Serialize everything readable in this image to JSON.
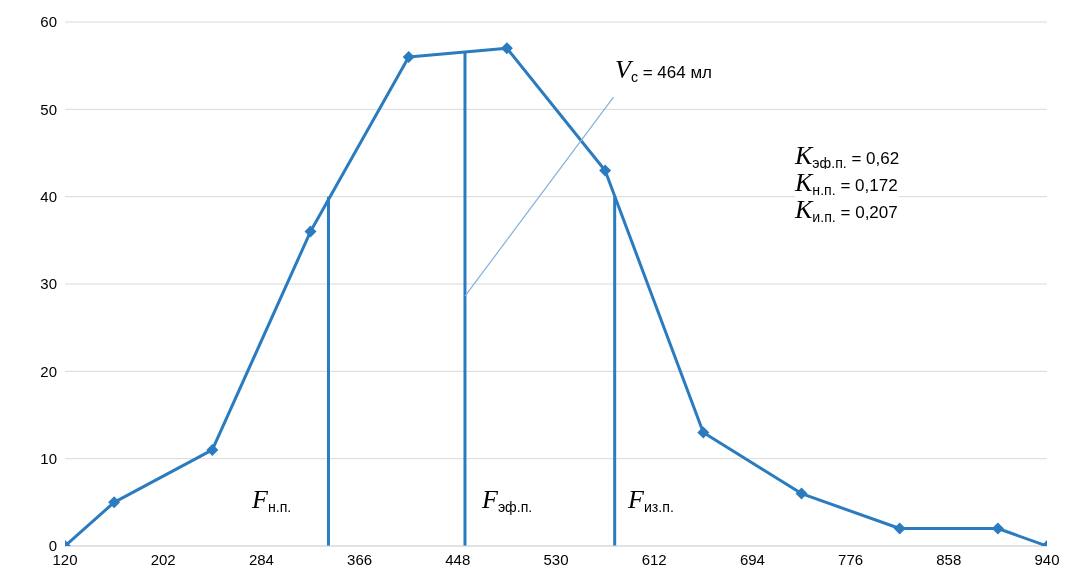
{
  "chart_data": {
    "type": "line",
    "xlim": [
      120,
      940
    ],
    "xticks": [
      120,
      202,
      284,
      366,
      448,
      530,
      612,
      694,
      776,
      858,
      940
    ],
    "ylim": [
      0,
      60
    ],
    "yticks": [
      0,
      10,
      20,
      30,
      40,
      50,
      60
    ],
    "grid": "y",
    "marker": "diamond",
    "line_style": "solid",
    "series": [
      {
        "color": "#2a7bbf",
        "x": [
          120,
          161,
          243,
          325,
          407,
          489,
          571,
          653,
          735,
          817,
          899,
          940
        ],
        "values": [
          0,
          5,
          11,
          36,
          56,
          57,
          43,
          13,
          6,
          2,
          2,
          0
        ]
      },
      {
        "color": "#2a7bbf",
        "marker": "none",
        "x": [
          340,
          340
        ],
        "values": [
          0,
          40
        ]
      },
      {
        "color": "#2a7bbf",
        "marker": "none",
        "x": [
          454,
          454
        ],
        "values": [
          0,
          56.5
        ]
      },
      {
        "color": "#2a7bbf",
        "marker": "none",
        "x": [
          579,
          579
        ],
        "values": [
          0,
          40
        ]
      },
      {
        "color": "#7fb0dc",
        "marker": "none",
        "x": [
          454,
          578
        ],
        "values": [
          28.6,
          51.4
        ]
      }
    ],
    "annotations": [
      "F$_{н.п.}$",
      "F$_{эф.п.}$",
      "F$_{из.п.}$",
      "V$_{с}$  = 464 мл",
      "K$_{эф.п.}$ = 0,62",
      "K$_{н.п.}$ = 0,172",
      "K$_{и.п.}$ = 0,207"
    ]
  }
}
